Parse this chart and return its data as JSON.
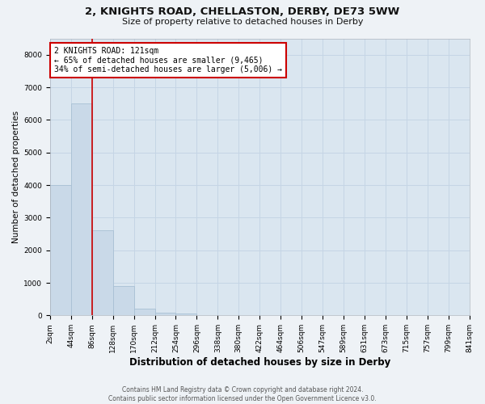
{
  "title": "2, KNIGHTS ROAD, CHELLASTON, DERBY, DE73 5WW",
  "subtitle": "Size of property relative to detached houses in Derby",
  "xlabel": "Distribution of detached houses by size in Derby",
  "ylabel": "Number of detached properties",
  "footer_line1": "Contains HM Land Registry data © Crown copyright and database right 2024.",
  "footer_line2": "Contains public sector information licensed under the Open Government Licence v3.0.",
  "annotation_line1": "2 KNIGHTS ROAD: 121sqm",
  "annotation_line2": "← 65% of detached houses are smaller (9,465)",
  "annotation_line3": "34% of semi-detached houses are larger (5,006) →",
  "bin_labels": [
    "2sqm",
    "44sqm",
    "86sqm",
    "128sqm",
    "170sqm",
    "212sqm",
    "254sqm",
    "296sqm",
    "338sqm",
    "380sqm",
    "422sqm",
    "464sqm",
    "506sqm",
    "547sqm",
    "589sqm",
    "631sqm",
    "673sqm",
    "715sqm",
    "757sqm",
    "799sqm",
    "841sqm"
  ],
  "bar_values": [
    4000,
    6500,
    2600,
    900,
    200,
    95,
    50,
    10,
    0,
    0,
    0,
    0,
    0,
    0,
    0,
    0,
    0,
    0,
    0,
    0
  ],
  "bar_color": "#c9d9e8",
  "bar_edge_color": "#a8c0d4",
  "grid_color": "#c5d5e5",
  "bg_color": "#dae6f0",
  "fig_bg_color": "#eef2f6",
  "red_line_x": 2,
  "ylim": [
    0,
    8500
  ],
  "yticks": [
    0,
    1000,
    2000,
    3000,
    4000,
    5000,
    6000,
    7000,
    8000
  ],
  "annotation_box_color": "#ffffff",
  "annotation_box_edge": "#cc0000",
  "red_line_color": "#cc0000",
  "title_fontsize": 9.5,
  "subtitle_fontsize": 8,
  "xlabel_fontsize": 8.5,
  "ylabel_fontsize": 7.5,
  "tick_fontsize": 6.5,
  "annotation_fontsize": 7,
  "footer_fontsize": 5.5
}
